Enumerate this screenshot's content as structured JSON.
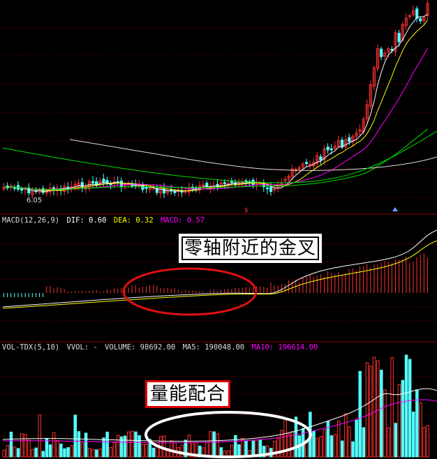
{
  "price_panel": {
    "low_label": "6.05"
  },
  "macd_panel": {
    "name": "MACD(12,26,9)",
    "dif": "DIF: 0.60",
    "dea": "DEA: 0.32",
    "macd": "MACD: 0.57",
    "annotation": "零轴附近的金叉"
  },
  "volume_panel": {
    "name": "VOL-TDX(5,10)",
    "vvol": "VVOL: -",
    "volume": "VOLUME: 98692.00",
    "ma5": "MA5: 190048.00",
    "ma10": "MA10: 196614.00",
    "annotation": "量能配合"
  },
  "colors": {
    "up": "#ff3232",
    "down": "#54ffff",
    "ma_white": "#ffffff",
    "ma_yellow": "#ffff00",
    "ma_magenta": "#ff00ff",
    "ma_green": "#00e000",
    "grid": "#8b0000",
    "ellipse_red": "#e01010",
    "ellipse_white": "#ffffff"
  }
}
